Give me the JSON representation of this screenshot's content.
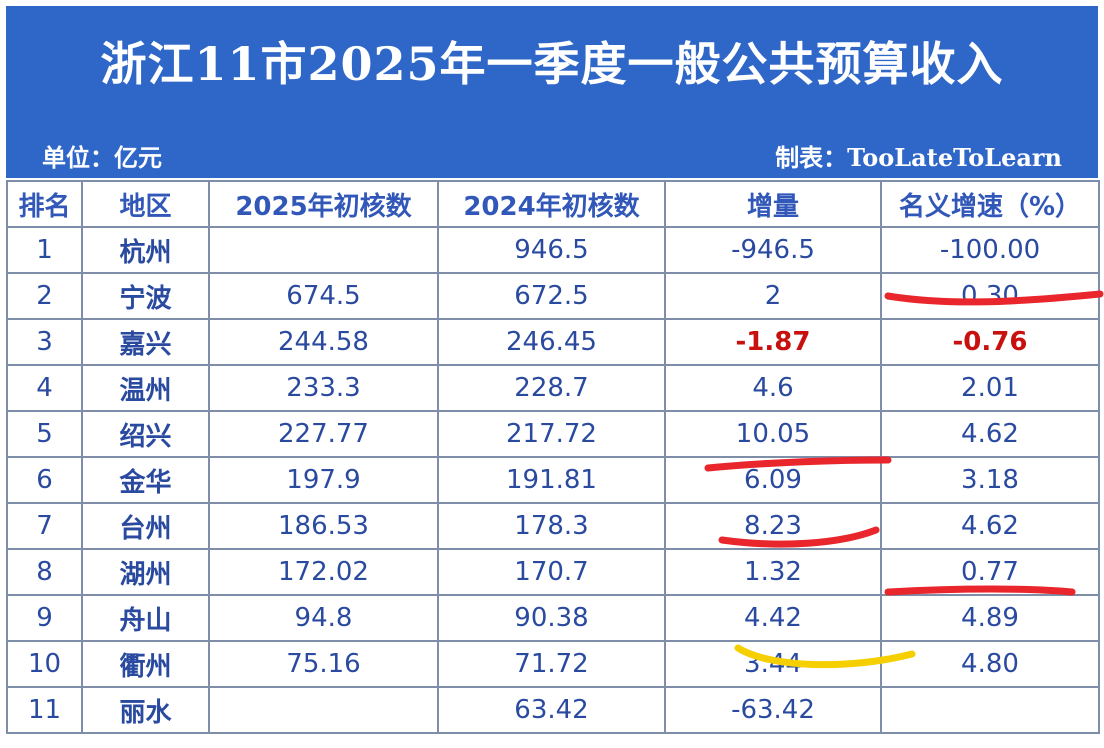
{
  "header": {
    "title": "浙江11市2025年一季度一般公共预算收入",
    "unit": "单位：亿元",
    "maker": "制表：TooLateToLearn"
  },
  "table": {
    "columns": [
      "排名",
      "地区",
      "2025年初核数",
      "2024年初核数",
      "增量",
      "名义增速（%）"
    ],
    "rows": [
      {
        "rank": "1",
        "city": "杭州",
        "v2025": "",
        "v2024": "946.5",
        "delta": "-946.5",
        "rate": "-100.00"
      },
      {
        "rank": "2",
        "city": "宁波",
        "v2025": "674.5",
        "v2024": "672.5",
        "delta": "2",
        "rate": "0.30"
      },
      {
        "rank": "3",
        "city": "嘉兴",
        "v2025": "244.58",
        "v2024": "246.45",
        "delta": "-1.87",
        "rate": "-0.76"
      },
      {
        "rank": "4",
        "city": "温州",
        "v2025": "233.3",
        "v2024": "228.7",
        "delta": "4.6",
        "rate": "2.01"
      },
      {
        "rank": "5",
        "city": "绍兴",
        "v2025": "227.77",
        "v2024": "217.72",
        "delta": "10.05",
        "rate": "4.62"
      },
      {
        "rank": "6",
        "city": "金华",
        "v2025": "197.9",
        "v2024": "191.81",
        "delta": "6.09",
        "rate": "3.18"
      },
      {
        "rank": "7",
        "city": "台州",
        "v2025": "186.53",
        "v2024": "178.3",
        "delta": "8.23",
        "rate": "4.62"
      },
      {
        "rank": "8",
        "city": "湖州",
        "v2025": "172.02",
        "v2024": "170.7",
        "delta": "1.32",
        "rate": "0.77"
      },
      {
        "rank": "9",
        "city": "舟山",
        "v2025": "94.8",
        "v2024": "90.38",
        "delta": "4.42",
        "rate": "4.89"
      },
      {
        "rank": "10",
        "city": "衢州",
        "v2025": "75.16",
        "v2024": "71.72",
        "delta": "3.44",
        "rate": "4.80"
      },
      {
        "rank": "11",
        "city": "丽水",
        "v2025": "",
        "v2024": "63.42",
        "delta": "-63.42",
        "rate": ""
      }
    ]
  },
  "colors": {
    "header_bg": "#2f67c9",
    "text_blue": "#2a4aa0",
    "negative_red": "#c8100f",
    "underline_red": "#e8262c",
    "underline_yellow": "#f5cf00"
  }
}
